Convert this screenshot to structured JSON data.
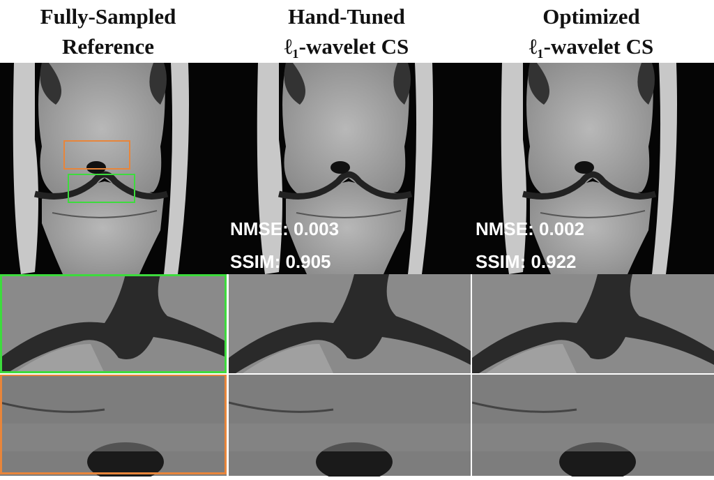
{
  "columns": [
    {
      "title": [
        "Fully-Sampled",
        "Reference"
      ]
    },
    {
      "title": [
        "Hand-Tuned",
        "ℓ₁-wavelet CS"
      ],
      "metrics": [
        "NMSE: 0.003",
        "SSIM: 0.905"
      ]
    },
    {
      "title": [
        "Optimized",
        "ℓ₁-wavelet CS"
      ],
      "metrics": [
        "NMSE: 0.002",
        "SSIM: 0.922"
      ]
    }
  ]
}
